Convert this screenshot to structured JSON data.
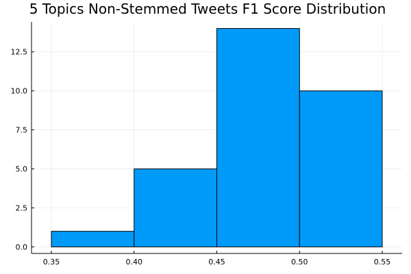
{
  "chart_data": {
    "type": "histogram",
    "title": "5 Topics Non-Stemmed Tweets F1 Score Distribution",
    "xlabel": "",
    "ylabel": "",
    "bins": [
      {
        "start": 0.35,
        "end": 0.4,
        "count": 1
      },
      {
        "start": 0.4,
        "end": 0.45,
        "count": 5
      },
      {
        "start": 0.45,
        "end": 0.5,
        "count": 14
      },
      {
        "start": 0.5,
        "end": 0.55,
        "count": 10
      }
    ],
    "x_ticks": [
      0.35,
      0.4,
      0.45,
      0.5,
      0.55
    ],
    "x_tick_labels": [
      "0.35",
      "0.40",
      "0.45",
      "0.50",
      "0.55"
    ],
    "y_ticks": [
      0,
      2.5,
      5,
      7.5,
      10,
      12.5
    ],
    "y_tick_labels": [
      "0.0",
      "2.5",
      "5.0",
      "7.5",
      "10.0",
      "12.5"
    ],
    "xlim": [
      0.338,
      0.562
    ],
    "ylim": [
      -0.42,
      14.42
    ],
    "grid": true,
    "legend": false,
    "bar_color": "#009af9",
    "edge_color": "#000000"
  }
}
